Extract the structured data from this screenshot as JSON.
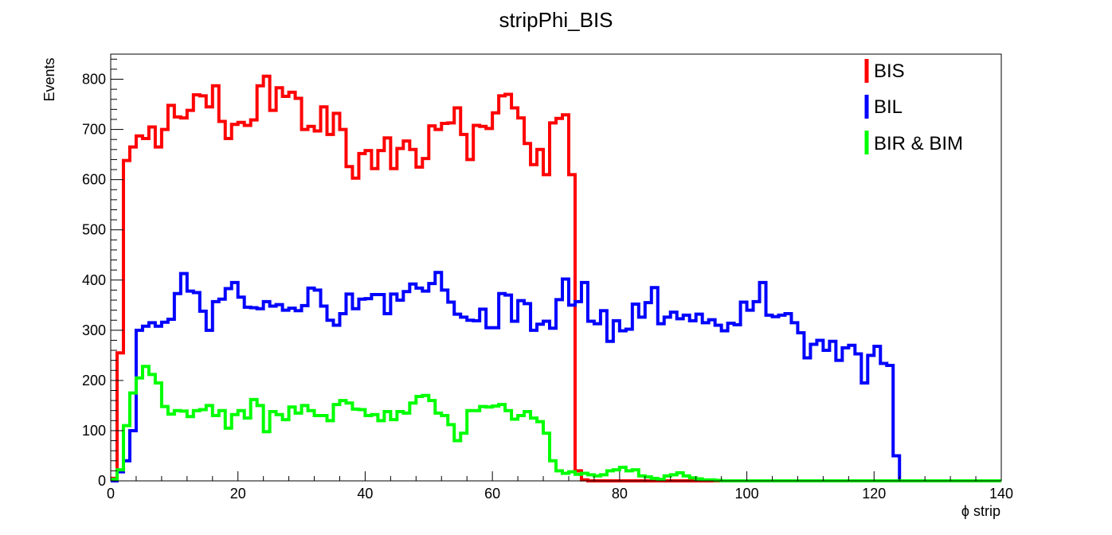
{
  "chart_data": {
    "type": "step",
    "title": "stripPhi_BIS",
    "xlabel": "ϕ strip",
    "ylabel": "Events",
    "xlim": [
      0,
      140
    ],
    "ylim": [
      0,
      850
    ],
    "x_ticks": [
      0,
      20,
      40,
      60,
      80,
      100,
      120,
      140
    ],
    "y_ticks": [
      0,
      100,
      200,
      300,
      400,
      500,
      600,
      700,
      800
    ],
    "x_tick_labels": [
      "0",
      "20",
      "40",
      "60",
      "80",
      "100",
      "120",
      "140"
    ],
    "y_tick_labels": [
      "0",
      "100",
      "200",
      "300",
      "400",
      "500",
      "600",
      "700",
      "800"
    ],
    "grid": false,
    "legend_position": "top-right",
    "bin_width": 1,
    "series": [
      {
        "name": "BIS",
        "color": "#ff0000",
        "values": [
          5,
          255,
          638,
          665,
          687,
          682,
          705,
          665,
          700,
          748,
          725,
          723,
          738,
          769,
          767,
          745,
          787,
          716,
          682,
          710,
          714,
          708,
          719,
          787,
          806,
          738,
          783,
          766,
          774,
          762,
          700,
          706,
          697,
          745,
          690,
          732,
          700,
          626,
          603,
          652,
          658,
          622,
          658,
          683,
          622,
          662,
          677,
          660,
          625,
          642,
          707,
          700,
          712,
          713,
          743,
          690,
          640,
          708,
          706,
          702,
          733,
          767,
          770,
          743,
          723,
          672,
          630,
          660,
          610,
          713,
          722,
          729,
          610,
          20,
          2,
          0,
          0,
          0,
          0,
          0,
          0,
          0,
          0,
          0,
          0,
          0,
          0,
          0,
          0,
          0,
          0,
          0,
          0,
          0,
          0,
          0,
          0,
          0,
          0,
          0,
          0,
          0,
          0,
          0,
          0,
          0,
          0,
          0,
          0,
          0,
          0,
          0,
          0,
          0,
          0,
          0,
          0,
          0,
          0,
          0,
          0,
          0,
          0,
          0,
          0,
          0,
          0,
          0,
          0,
          0,
          0,
          0,
          0,
          0,
          0,
          0,
          0,
          0,
          0,
          0
        ]
      },
      {
        "name": "BIL",
        "color": "#0000ff",
        "values": [
          0,
          18,
          40,
          100,
          300,
          308,
          315,
          308,
          316,
          322,
          373,
          413,
          378,
          375,
          338,
          300,
          357,
          362,
          383,
          395,
          366,
          346,
          345,
          343,
          357,
          348,
          351,
          340,
          344,
          339,
          349,
          384,
          380,
          348,
          320,
          310,
          333,
          372,
          343,
          362,
          363,
          371,
          371,
          333,
          372,
          360,
          377,
          392,
          384,
          378,
          393,
          415,
          380,
          356,
          332,
          326,
          320,
          319,
          342,
          305,
          305,
          373,
          370,
          318,
          359,
          353,
          300,
          312,
          318,
          304,
          361,
          402,
          350,
          357,
          395,
          318,
          313,
          339,
          278,
          319,
          299,
          302,
          352,
          326,
          355,
          385,
          313,
          326,
          336,
          323,
          330,
          319,
          332,
          315,
          321,
          310,
          299,
          314,
          311,
          356,
          340,
          357,
          395,
          330,
          327,
          330,
          333,
          315,
          295,
          245,
          272,
          280,
          260,
          278,
          240,
          265,
          270,
          253,
          195,
          250,
          268,
          234,
          230,
          50,
          0,
          0,
          0,
          0,
          0,
          0,
          0,
          0,
          0,
          0,
          0,
          0,
          0,
          0,
          0,
          0
        ]
      },
      {
        "name": "BIR & BIM",
        "color": "#00ff00",
        "values": [
          3,
          22,
          110,
          175,
          205,
          228,
          212,
          195,
          148,
          133,
          140,
          139,
          128,
          140,
          142,
          150,
          130,
          140,
          105,
          132,
          140,
          125,
          162,
          150,
          98,
          138,
          132,
          122,
          147,
          135,
          150,
          140,
          130,
          130,
          120,
          152,
          160,
          155,
          143,
          142,
          130,
          132,
          120,
          138,
          122,
          138,
          135,
          155,
          168,
          170,
          160,
          135,
          130,
          112,
          80,
          95,
          140,
          140,
          148,
          147,
          149,
          152,
          140,
          123,
          130,
          138,
          125,
          118,
          95,
          40,
          20,
          15,
          18,
          13,
          15,
          12,
          10,
          12,
          20,
          22,
          27,
          20,
          22,
          10,
          8,
          5,
          3,
          10,
          12,
          16,
          10,
          6,
          4,
          2,
          2,
          1,
          0,
          0,
          0,
          0,
          0,
          0,
          0,
          0,
          0,
          0,
          0,
          0,
          0,
          0,
          0,
          0,
          0,
          0,
          0,
          0,
          0,
          0,
          0,
          0,
          0,
          0,
          0,
          0,
          0,
          0,
          0,
          0,
          0,
          0,
          0,
          0,
          0,
          0,
          0,
          0,
          0,
          0,
          0,
          0
        ]
      }
    ]
  }
}
